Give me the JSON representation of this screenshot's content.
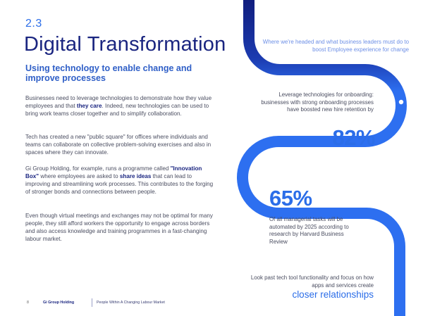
{
  "header": {
    "section_number": "2.3",
    "title": "Digital Transformation",
    "subtitle": "Using technology to enable change and improve processes"
  },
  "body": {
    "p1_pre": "Businesses need to leverage technologies to demonstrate how they value employees and that ",
    "p1_bold": "they care",
    "p1_post": ". Indeed, new technologies can be used to bring work teams closer together and to simplify collaboration.",
    "p2": "Tech has created a new \"public square\" for offices where individuals and teams can collaborate on collective problem-solving exercises and also in spaces where they can innovate.",
    "p3_pre": " Gi Group Holding, for example, runs a programme called ",
    "p3_bold1": "\"Innovation Box\"",
    "p3_mid": " where employees are asked to ",
    "p3_bold2": "share ideas",
    "p3_post": " that can lead to improving and streamlining work processes. This contributes to the forging of stronger bonds and connections between people.",
    "p4": "Even though virtual meetings and exchanges may not be optimal for many people, they still afford workers the opportunity to engage across borders and also access knowledge and training programmes in a fast-changing labour market."
  },
  "roadmap": {
    "intro": "Where we're headed and what business leaders must do to boost Employee experience for change",
    "onboarding_text": "Leverage technologies for onboarding: businesses with strong onboarding processes have boosted new hire retention by",
    "onboarding_stat": "82%",
    "managerial_stat": "65%",
    "managerial_text": "Of all managerial tasks will be automated by 2025 according to research by Harvard Business Review",
    "tools_text": "Look past tech tool functionality and focus on how apps and services create",
    "tools_emphasis": "closer relationships"
  },
  "colors": {
    "navy": "#1a2580",
    "accent_blue": "#2b6de8",
    "road_blue": "#2d6ff0",
    "road_navy": "#0f1a78"
  },
  "footer": {
    "page_number": "8",
    "brand": "Gi Group Holding",
    "publication": "People Within A Changing Labour Market"
  }
}
